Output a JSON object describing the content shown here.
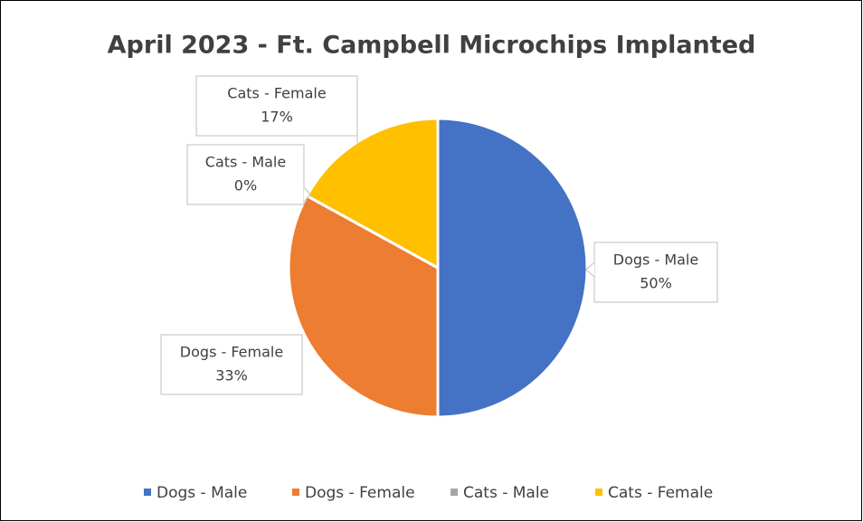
{
  "chart_data": {
    "type": "pie",
    "title": "April 2023 - Ft. Campbell Microchips Implanted",
    "categories": [
      "Dogs - Male",
      "Dogs - Female",
      "Cats - Male",
      "Cats - Female"
    ],
    "values": [
      50,
      33,
      0,
      17
    ],
    "value_labels": [
      "50%",
      "33%",
      "0%",
      "17%"
    ],
    "colors": [
      "#4472c4",
      "#ed7d31",
      "#a5a5a5",
      "#ffc000"
    ],
    "legend": "bottom"
  }
}
